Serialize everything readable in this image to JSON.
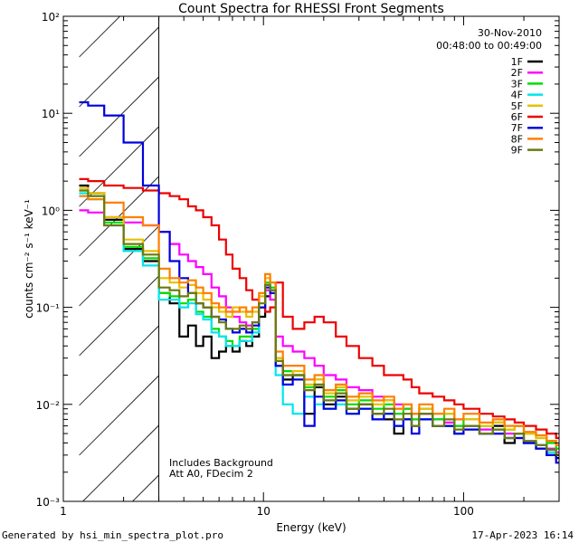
{
  "chart_data": {
    "type": "line",
    "title": "Count Spectra for RHESSI Front Segments",
    "date_label": "30-Nov-2010",
    "time_label": "00:48:00 to 00:49:00",
    "xlabel": "Energy (keV)",
    "ylabel": "counts cm⁻² s⁻¹ keV⁻¹",
    "xscale": "log",
    "yscale": "log",
    "xlim": [
      1,
      300
    ],
    "ylim": [
      0.001,
      100
    ],
    "x_ticks": [
      {
        "value": 1,
        "label": "1"
      },
      {
        "value": 10,
        "label": "10"
      },
      {
        "value": 100,
        "label": "100"
      }
    ],
    "y_ticks": [
      {
        "value": 0.001,
        "label": "10⁻³"
      },
      {
        "value": 0.01,
        "label": "10⁻²"
      },
      {
        "value": 0.1,
        "label": "10⁻¹"
      },
      {
        "value": 1,
        "label": "10⁰"
      },
      {
        "value": 10,
        "label": "10¹"
      },
      {
        "value": 100,
        "label": "10²"
      }
    ],
    "excluded_region": {
      "x_min": 1.2,
      "x_max": 3.0
    },
    "annotations": [
      "Includes Background",
      "Att A0, FDecim 2"
    ],
    "legend_position": "top-right",
    "series": [
      {
        "name": "1F",
        "color": "#000000",
        "x": [
          1.2,
          1.33,
          1.6,
          2.0,
          2.5,
          3.0,
          3.4,
          3.8,
          4.2,
          4.6,
          5.0,
          5.5,
          6.0,
          6.5,
          7.0,
          7.6,
          8.2,
          8.8,
          9.5,
          10.2,
          10.8,
          11.5,
          12.5,
          14,
          16,
          18,
          20,
          23,
          26,
          30,
          35,
          40,
          45,
          50,
          55,
          60,
          70,
          80,
          90,
          100,
          120,
          140,
          160,
          180,
          200,
          230,
          260,
          290
        ],
        "y": [
          1.8,
          1.5,
          0.8,
          0.4,
          0.3,
          0.14,
          0.11,
          0.05,
          0.065,
          0.04,
          0.05,
          0.03,
          0.035,
          0.04,
          0.035,
          0.045,
          0.04,
          0.05,
          0.08,
          0.13,
          0.15,
          0.025,
          0.018,
          0.02,
          0.008,
          0.015,
          0.01,
          0.012,
          0.009,
          0.01,
          0.008,
          0.007,
          0.005,
          0.007,
          0.006,
          0.008,
          0.006,
          0.006,
          0.005,
          0.006,
          0.005,
          0.006,
          0.004,
          0.005,
          0.004,
          0.0035,
          0.003,
          0.0028
        ]
      },
      {
        "name": "2F",
        "color": "#ff00ff",
        "x": [
          1.2,
          1.33,
          1.6,
          2.0,
          2.5,
          3.0,
          3.4,
          3.8,
          4.2,
          4.6,
          5.0,
          5.5,
          6.0,
          6.5,
          7.0,
          7.6,
          8.2,
          8.8,
          9.5,
          10.2,
          10.8,
          11.5,
          12.5,
          14,
          16,
          18,
          20,
          23,
          26,
          30,
          35,
          40,
          45,
          50,
          55,
          60,
          70,
          80,
          90,
          100,
          120,
          140,
          160,
          180,
          200,
          230,
          260,
          290
        ],
        "y": [
          1.0,
          0.95,
          0.85,
          0.75,
          0.7,
          0.6,
          0.45,
          0.35,
          0.3,
          0.26,
          0.22,
          0.16,
          0.13,
          0.1,
          0.08,
          0.07,
          0.065,
          0.07,
          0.1,
          0.15,
          0.12,
          0.05,
          0.04,
          0.035,
          0.03,
          0.025,
          0.02,
          0.018,
          0.015,
          0.014,
          0.012,
          0.011,
          0.01,
          0.009,
          0.008,
          0.008,
          0.007,
          0.0065,
          0.006,
          0.006,
          0.0055,
          0.005,
          0.005,
          0.0045,
          0.004,
          0.0038,
          0.0035,
          0.0032
        ]
      },
      {
        "name": "3F",
        "color": "#00dd00",
        "x": [
          1.2,
          1.33,
          1.6,
          2.0,
          2.5,
          3.0,
          3.4,
          3.8,
          4.2,
          4.6,
          5.0,
          5.5,
          6.0,
          6.5,
          7.0,
          7.6,
          8.2,
          8.8,
          9.5,
          10.2,
          10.8,
          11.5,
          12.5,
          14,
          16,
          18,
          20,
          23,
          26,
          30,
          35,
          40,
          45,
          50,
          55,
          60,
          70,
          80,
          90,
          100,
          120,
          140,
          160,
          180,
          200,
          230,
          260,
          290
        ],
        "y": [
          1.6,
          1.4,
          0.75,
          0.42,
          0.32,
          0.14,
          0.13,
          0.11,
          0.12,
          0.09,
          0.08,
          0.06,
          0.05,
          0.045,
          0.04,
          0.05,
          0.05,
          0.06,
          0.1,
          0.18,
          0.16,
          0.03,
          0.022,
          0.02,
          0.015,
          0.018,
          0.012,
          0.014,
          0.01,
          0.011,
          0.009,
          0.01,
          0.008,
          0.009,
          0.007,
          0.009,
          0.007,
          0.008,
          0.006,
          0.007,
          0.006,
          0.0065,
          0.0055,
          0.006,
          0.005,
          0.0045,
          0.004,
          0.0035
        ]
      },
      {
        "name": "4F",
        "color": "#00e5ee",
        "x": [
          1.2,
          1.33,
          1.6,
          2.0,
          2.5,
          3.0,
          3.4,
          3.8,
          4.2,
          4.6,
          5.0,
          5.5,
          6.0,
          6.5,
          7.0,
          7.6,
          8.2,
          8.8,
          9.5,
          10.2,
          10.8,
          11.5,
          12.5,
          14,
          16,
          18,
          20,
          23,
          26,
          30,
          35,
          40,
          45,
          50,
          55,
          60,
          70,
          80,
          90,
          100,
          120,
          140,
          160,
          180,
          200,
          230,
          260,
          290
        ],
        "y": [
          1.5,
          1.3,
          0.7,
          0.38,
          0.27,
          0.12,
          0.12,
          0.1,
          0.11,
          0.085,
          0.075,
          0.055,
          0.05,
          0.04,
          0.04,
          0.045,
          0.045,
          0.055,
          0.1,
          0.17,
          0.15,
          0.02,
          0.01,
          0.008,
          0.012,
          0.01,
          0.009,
          0.01,
          0.008,
          0.009,
          0.007,
          0.008,
          0.006,
          0.007,
          0.006,
          0.007,
          0.006,
          0.006,
          0.005,
          0.006,
          0.005,
          0.0055,
          0.0045,
          0.005,
          0.004,
          0.0038,
          0.0032,
          0.003
        ]
      },
      {
        "name": "5F",
        "color": "#e8c000",
        "x": [
          1.2,
          1.33,
          1.6,
          2.0,
          2.5,
          3.0,
          3.4,
          3.8,
          4.2,
          4.6,
          5.0,
          5.5,
          6.0,
          6.5,
          7.0,
          7.6,
          8.2,
          8.8,
          9.5,
          10.2,
          10.8,
          11.5,
          12.5,
          14,
          16,
          18,
          20,
          23,
          26,
          30,
          35,
          40,
          45,
          50,
          55,
          60,
          70,
          80,
          90,
          100,
          120,
          140,
          160,
          180,
          200,
          230,
          260,
          290
        ],
        "y": [
          1.7,
          1.5,
          0.85,
          0.5,
          0.38,
          0.2,
          0.18,
          0.16,
          0.17,
          0.14,
          0.12,
          0.1,
          0.09,
          0.08,
          0.1,
          0.09,
          0.08,
          0.09,
          0.13,
          0.2,
          0.18,
          0.03,
          0.02,
          0.022,
          0.016,
          0.018,
          0.013,
          0.015,
          0.011,
          0.012,
          0.01,
          0.011,
          0.009,
          0.01,
          0.008,
          0.009,
          0.008,
          0.008,
          0.007,
          0.007,
          0.006,
          0.0065,
          0.0055,
          0.006,
          0.005,
          0.0045,
          0.0042,
          0.0038
        ]
      },
      {
        "name": "6F",
        "color": "#ee0000",
        "x": [
          1.2,
          1.33,
          1.6,
          2.0,
          2.5,
          3.0,
          3.4,
          3.8,
          4.2,
          4.6,
          5.0,
          5.5,
          6.0,
          6.5,
          7.0,
          7.6,
          8.2,
          8.8,
          9.5,
          10.2,
          10.8,
          11.5,
          12.5,
          14,
          16,
          18,
          20,
          23,
          26,
          30,
          35,
          40,
          45,
          50,
          55,
          60,
          70,
          80,
          90,
          100,
          120,
          140,
          160,
          180,
          200,
          230,
          260,
          290
        ],
        "y": [
          2.1,
          2.0,
          1.8,
          1.7,
          1.6,
          1.5,
          1.4,
          1.3,
          1.1,
          1.0,
          0.85,
          0.7,
          0.5,
          0.35,
          0.25,
          0.2,
          0.15,
          0.12,
          0.1,
          0.09,
          0.1,
          0.18,
          0.08,
          0.06,
          0.07,
          0.08,
          0.07,
          0.05,
          0.04,
          0.03,
          0.025,
          0.02,
          0.02,
          0.018,
          0.015,
          0.013,
          0.012,
          0.011,
          0.01,
          0.009,
          0.008,
          0.0075,
          0.007,
          0.0065,
          0.006,
          0.0055,
          0.005,
          0.0045
        ]
      },
      {
        "name": "7F",
        "color": "#0000dd",
        "x": [
          1.2,
          1.33,
          1.6,
          2.0,
          2.5,
          3.0,
          3.4,
          3.8,
          4.2,
          4.6,
          5.0,
          5.5,
          6.0,
          6.5,
          7.0,
          7.6,
          8.2,
          8.8,
          9.5,
          10.2,
          10.8,
          11.5,
          12.5,
          14,
          16,
          18,
          20,
          23,
          26,
          30,
          35,
          40,
          45,
          50,
          55,
          60,
          70,
          80,
          90,
          100,
          120,
          140,
          160,
          180,
          200,
          230,
          260,
          290
        ],
        "y": [
          13,
          12,
          9.5,
          5,
          1.8,
          0.6,
          0.3,
          0.2,
          0.14,
          0.11,
          0.1,
          0.08,
          0.075,
          0.06,
          0.055,
          0.06,
          0.055,
          0.065,
          0.1,
          0.16,
          0.14,
          0.025,
          0.016,
          0.018,
          0.006,
          0.012,
          0.009,
          0.011,
          0.008,
          0.009,
          0.007,
          0.008,
          0.006,
          0.007,
          0.005,
          0.007,
          0.006,
          0.006,
          0.005,
          0.0055,
          0.005,
          0.005,
          0.0045,
          0.0045,
          0.004,
          0.0035,
          0.003,
          0.0025
        ]
      },
      {
        "name": "8F",
        "color": "#ff7f00",
        "x": [
          1.2,
          1.33,
          1.6,
          2.0,
          2.5,
          3.0,
          3.4,
          3.8,
          4.2,
          4.6,
          5.0,
          5.5,
          6.0,
          6.5,
          7.0,
          7.6,
          8.2,
          8.8,
          9.5,
          10.2,
          10.8,
          11.5,
          12.5,
          14,
          16,
          18,
          20,
          23,
          26,
          30,
          35,
          40,
          45,
          50,
          55,
          60,
          70,
          80,
          90,
          100,
          120,
          140,
          160,
          180,
          200,
          230,
          260,
          290
        ],
        "y": [
          1.4,
          1.3,
          1.2,
          0.85,
          0.7,
          0.25,
          0.2,
          0.18,
          0.19,
          0.16,
          0.14,
          0.11,
          0.1,
          0.09,
          0.09,
          0.1,
          0.09,
          0.1,
          0.14,
          0.22,
          0.18,
          0.035,
          0.025,
          0.025,
          0.018,
          0.02,
          0.014,
          0.016,
          0.012,
          0.013,
          0.011,
          0.012,
          0.009,
          0.01,
          0.008,
          0.01,
          0.008,
          0.009,
          0.007,
          0.008,
          0.0065,
          0.007,
          0.006,
          0.006,
          0.0052,
          0.0048,
          0.0042,
          0.0038
        ]
      },
      {
        "name": "9F",
        "color": "#6b7a0f",
        "x": [
          1.2,
          1.33,
          1.6,
          2.0,
          2.5,
          3.0,
          3.4,
          3.8,
          4.2,
          4.6,
          5.0,
          5.5,
          6.0,
          6.5,
          7.0,
          7.6,
          8.2,
          8.8,
          9.5,
          10.2,
          10.8,
          11.5,
          12.5,
          14,
          16,
          18,
          20,
          23,
          26,
          30,
          35,
          40,
          45,
          50,
          55,
          60,
          70,
          80,
          90,
          100,
          120,
          140,
          160,
          180,
          200,
          230,
          260,
          290
        ],
        "y": [
          1.6,
          1.4,
          0.7,
          0.45,
          0.35,
          0.16,
          0.15,
          0.13,
          0.14,
          0.11,
          0.1,
          0.08,
          0.07,
          0.06,
          0.06,
          0.065,
          0.06,
          0.07,
          0.11,
          0.17,
          0.15,
          0.028,
          0.02,
          0.02,
          0.014,
          0.016,
          0.011,
          0.013,
          0.009,
          0.01,
          0.008,
          0.009,
          0.007,
          0.008,
          0.006,
          0.008,
          0.006,
          0.007,
          0.0055,
          0.006,
          0.005,
          0.0055,
          0.0045,
          0.005,
          0.0042,
          0.0038,
          0.0034,
          0.003
        ]
      }
    ]
  },
  "footer": {
    "generated_by": "Generated by hsi_min_spectra_plot.pro",
    "timestamp": "17-Apr-2023 16:14"
  }
}
